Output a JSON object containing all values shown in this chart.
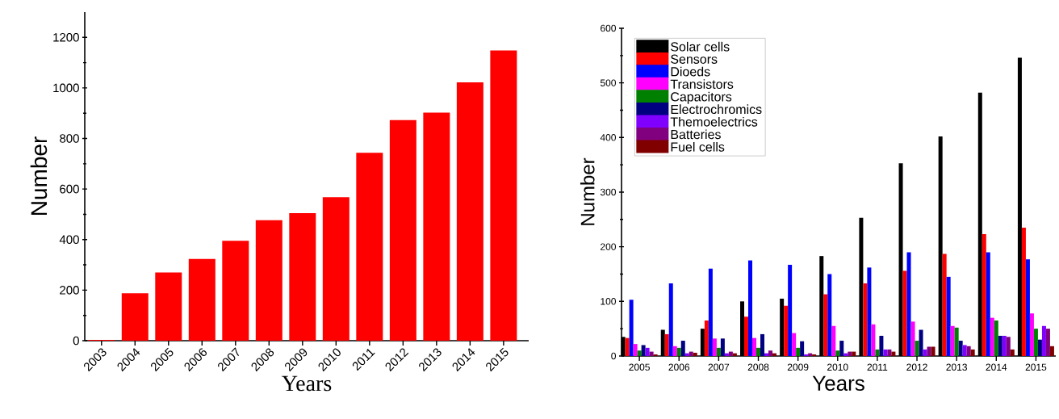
{
  "chart_data": [
    {
      "type": "bar",
      "xlabel": "Years",
      "ylabel": "Number",
      "categories": [
        "2003",
        "2004",
        "2005",
        "2006",
        "2007",
        "2008",
        "2009",
        "2010",
        "2011",
        "2012",
        "2013",
        "2014",
        "2015"
      ],
      "values": [
        3,
        188,
        270,
        323,
        395,
        477,
        505,
        568,
        743,
        873,
        902,
        1022,
        1148
      ],
      "color": "#ff0000",
      "ylim": [
        0,
        1300
      ],
      "yticks": [
        0,
        200,
        400,
        600,
        800,
        1000,
        1200
      ]
    },
    {
      "type": "bar",
      "xlabel": "Years",
      "ylabel": "Number",
      "categories": [
        "2005",
        "2006",
        "2007",
        "2008",
        "2009",
        "2010",
        "2011",
        "2012",
        "2013",
        "2014",
        "2015"
      ],
      "series": [
        {
          "name": "Solar cells",
          "color": "#000000",
          "values": [
            35,
            48,
            50,
            100,
            105,
            183,
            253,
            353,
            402,
            482,
            546
          ]
        },
        {
          "name": "Sensors",
          "color": "#ff0000",
          "values": [
            33,
            40,
            65,
            72,
            92,
            113,
            133,
            156,
            187,
            223,
            235
          ]
        },
        {
          "name": "Dioeds",
          "color": "#0000ff",
          "values": [
            103,
            133,
            160,
            175,
            167,
            150,
            162,
            190,
            145,
            190,
            177
          ]
        },
        {
          "name": "Transistors",
          "color": "#ff00ff",
          "values": [
            22,
            18,
            32,
            33,
            42,
            55,
            58,
            63,
            55,
            70,
            78
          ]
        },
        {
          "name": "Capacitors",
          "color": "#008000",
          "values": [
            10,
            15,
            15,
            15,
            15,
            10,
            12,
            28,
            52,
            65,
            50
          ]
        },
        {
          "name": "Electrochromics",
          "color": "#000080",
          "values": [
            20,
            28,
            32,
            40,
            27,
            28,
            37,
            48,
            28,
            37,
            30
          ]
        },
        {
          "name": "Themoelectrics",
          "color": "#8000ff",
          "values": [
            15,
            5,
            5,
            5,
            3,
            5,
            12,
            12,
            20,
            37,
            55
          ]
        },
        {
          "name": "Batteries",
          "color": "#800080",
          "values": [
            8,
            8,
            8,
            10,
            5,
            8,
            12,
            17,
            18,
            35,
            50
          ]
        },
        {
          "name": "Fuel cells",
          "color": "#800000",
          "values": [
            3,
            6,
            5,
            5,
            3,
            8,
            8,
            17,
            12,
            12,
            18
          ]
        }
      ],
      "ylim": [
        0,
        600
      ],
      "yticks": [
        0,
        100,
        200,
        300,
        400,
        500,
        600
      ],
      "legend": "top left"
    }
  ]
}
